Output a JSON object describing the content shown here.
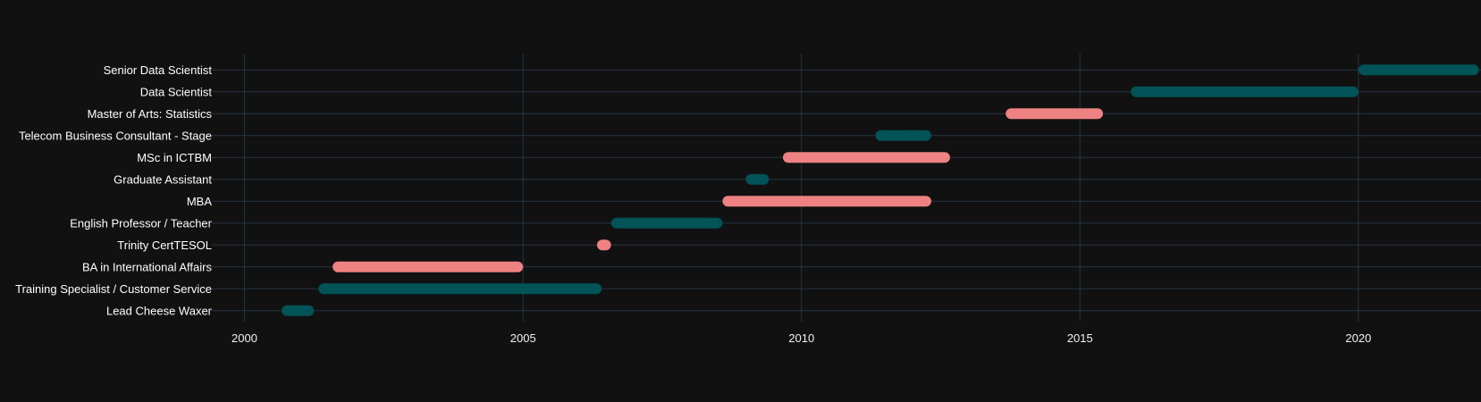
{
  "chart_data": {
    "type": "timeline",
    "title": "",
    "xlabel": "",
    "ylabel": "",
    "xlim": [
      "1999-06-01",
      "2022-03-15"
    ],
    "x_ticks": [
      "2000",
      "2005",
      "2010",
      "2015",
      "2020"
    ],
    "grid": true,
    "legend": "none",
    "colors": {
      "background": "#111111",
      "grid": "#283442",
      "teal": "#005357",
      "pink": "#ee8181"
    },
    "categories": [
      "Lead Cheese Waxer",
      "Training Specialist / Customer Service",
      "BA in International Affairs",
      "Trinity CertTESOL",
      "English Professor / Teacher",
      "MBA",
      "Graduate Assistant",
      "MSc in ICTBM",
      "Telecom Business Consultant - Stage",
      "Master of Arts: Statistics",
      "Data Scientist",
      "Senior Data Scientist"
    ],
    "tasks": [
      {
        "task": "Lead Cheese Waxer",
        "start": "2000-09-01",
        "end": "2001-04-01",
        "color": "teal"
      },
      {
        "task": "Training Specialist / Customer Service",
        "start": "2001-05-01",
        "end": "2006-06-01",
        "color": "teal"
      },
      {
        "task": "BA in International Affairs",
        "start": "2001-08-01",
        "end": "2005-01-01",
        "color": "pink"
      },
      {
        "task": "Trinity CertTESOL",
        "start": "2006-05-01",
        "end": "2006-08-01",
        "color": "pink"
      },
      {
        "task": "English Professor / Teacher",
        "start": "2006-08-01",
        "end": "2008-08-01",
        "color": "teal"
      },
      {
        "task": "MBA",
        "start": "2008-08-01",
        "end": "2012-05-01",
        "color": "pink"
      },
      {
        "task": "Graduate Assistant",
        "start": "2009-01-01",
        "end": "2009-06-01",
        "color": "teal"
      },
      {
        "task": "MSc in ICTBM",
        "start": "2009-09-01",
        "end": "2012-09-01",
        "color": "pink"
      },
      {
        "task": "Telecom Business Consultant - Stage",
        "start": "2011-05-01",
        "end": "2012-05-01",
        "color": "teal"
      },
      {
        "task": "Master of Arts: Statistics",
        "start": "2013-09-01",
        "end": "2015-06-01",
        "color": "pink"
      },
      {
        "task": "Data Scientist",
        "start": "2015-12-01",
        "end": "2020-01-01",
        "color": "teal"
      },
      {
        "task": "Senior Data Scientist",
        "start": "2020-01-01",
        "end": "2022-03-01",
        "color": "teal"
      }
    ]
  }
}
